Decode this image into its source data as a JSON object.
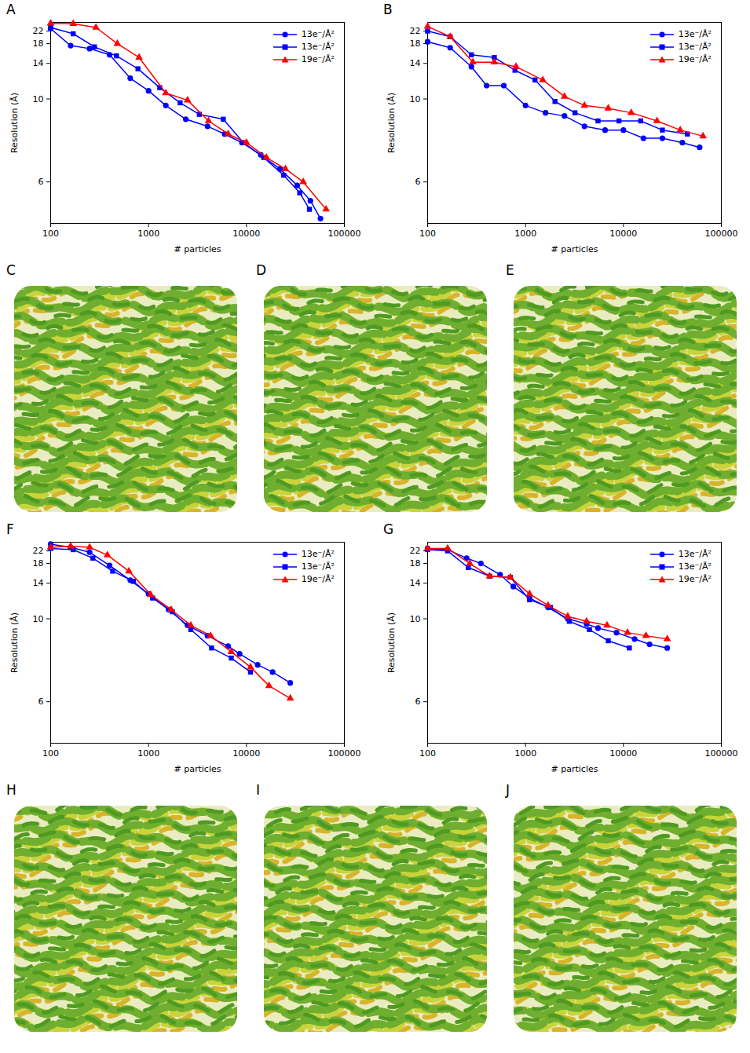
{
  "chart_data": [
    {
      "panel": "A",
      "type": "line",
      "x_label": "# particles",
      "y_label": "Resolution (Å)",
      "log": "x",
      "xlim": [
        100,
        100000
      ],
      "ylim": [
        5,
        26
      ],
      "xticks": [
        100,
        1000,
        10000,
        100000
      ],
      "yticks": [
        6,
        10,
        14,
        18,
        22
      ],
      "grid": false,
      "legend": "upper right",
      "series": [
        {
          "name": "13e⁻/Å²",
          "color": "#0000ff",
          "marker": "circle",
          "x": [
            100,
            160,
            250,
            400,
            650,
            1000,
            1500,
            2400,
            4000,
            6000,
            9000,
            14000,
            22000,
            33000,
            45000,
            57000
          ],
          "values": [
            23,
            17.5,
            16.8,
            15.5,
            12,
            10.7,
            9.5,
            8.6,
            8.2,
            7.8,
            7.4,
            6.9,
            6.4,
            5.9,
            5.5,
            5.1
          ]
        },
        {
          "name": "13e⁻/Å²",
          "color": "#0000ff",
          "marker": "square",
          "x": [
            100,
            170,
            280,
            470,
            780,
            1300,
            2100,
            3300,
            5800,
            9300,
            15000,
            24000,
            35000,
            44000
          ],
          "values": [
            23.5,
            21,
            17.2,
            15.3,
            13.2,
            11,
            9.7,
            8.9,
            8.6,
            7.4,
            6.8,
            6.2,
            5.7,
            5.3
          ]
        },
        {
          "name": "19e⁻/Å²",
          "color": "#ff0000",
          "marker": "triangle",
          "x": [
            100,
            170,
            290,
            480,
            800,
            1500,
            2500,
            4100,
            6500,
            10000,
            16000,
            25000,
            38000,
            65000
          ],
          "values": [
            25.5,
            25.3,
            23.5,
            18,
            15,
            10.5,
            9.9,
            8.5,
            7.8,
            7.4,
            6.8,
            6.4,
            6,
            5.3
          ]
        }
      ]
    },
    {
      "panel": "B",
      "type": "line",
      "x_label": "# particles",
      "y_label": "Resolution (Å)",
      "log": "x",
      "xlim": [
        100,
        100000
      ],
      "ylim": [
        5,
        26
      ],
      "xticks": [
        100,
        1000,
        10000,
        100000
      ],
      "yticks": [
        6,
        10,
        14,
        18,
        22
      ],
      "grid": false,
      "legend": "upper right",
      "series": [
        {
          "name": "13e⁻/Å²",
          "color": "#0000ff",
          "marker": "circle",
          "x": [
            100,
            170,
            280,
            400,
            600,
            1000,
            1600,
            2500,
            4000,
            6500,
            10000,
            16000,
            25000,
            40000,
            60000
          ],
          "values": [
            18.5,
            17,
            13.5,
            11.2,
            11.2,
            9.5,
            9,
            8.8,
            8.2,
            8,
            8,
            7.6,
            7.6,
            7.4,
            7.2
          ]
        },
        {
          "name": "13e⁻/Å²",
          "color": "#0000ff",
          "marker": "square",
          "x": [
            100,
            170,
            280,
            480,
            780,
            1250,
            2000,
            3200,
            5500,
            9000,
            15000,
            25000,
            45000
          ],
          "values": [
            22,
            20,
            15.5,
            15,
            13,
            11.8,
            9.8,
            9,
            8.5,
            8.5,
            8.5,
            8,
            7.8
          ]
        },
        {
          "name": "19e⁻/Å²",
          "color": "#ff0000",
          "marker": "triangle",
          "x": [
            100,
            170,
            290,
            480,
            800,
            1500,
            2500,
            4000,
            7000,
            12000,
            22000,
            38000,
            65000
          ],
          "values": [
            24,
            20,
            14.2,
            14.2,
            13.5,
            11.8,
            10.2,
            9.5,
            9.3,
            9,
            8.5,
            8,
            7.7
          ]
        }
      ]
    },
    {
      "panel": "F",
      "type": "line",
      "x_label": "# particles",
      "y_label": "Resolution (Å)",
      "log": "x",
      "xlim": [
        100,
        100000
      ],
      "ylim": [
        5,
        26
      ],
      "xticks": [
        100,
        1000,
        10000,
        100000
      ],
      "yticks": [
        6,
        10,
        14,
        18,
        22
      ],
      "grid": false,
      "legend": "upper right",
      "series": [
        {
          "name": "13e⁻/Å²",
          "color": "#0000ff",
          "marker": "circle",
          "x": [
            100,
            160,
            250,
            400,
            650,
            1000,
            1600,
            2500,
            4000,
            6500,
            8500,
            13000,
            18500,
            28000
          ],
          "values": [
            25,
            23.5,
            21.5,
            17.5,
            14.5,
            12.5,
            10.8,
            9.5,
            8.8,
            8.2,
            7.8,
            7.3,
            7,
            6.6
          ]
        },
        {
          "name": "13e⁻/Å²",
          "color": "#0000ff",
          "marker": "square",
          "x": [
            100,
            170,
            270,
            430,
            700,
            1100,
            1750,
            2700,
            4400,
            7000,
            11000
          ],
          "values": [
            23,
            22.5,
            19.5,
            16.2,
            14.3,
            12,
            10.6,
            9.2,
            8.1,
            7.6,
            7
          ]
        },
        {
          "name": "19e⁻/Å²",
          "color": "#ff0000",
          "marker": "triangle",
          "x": [
            100,
            160,
            250,
            380,
            630,
            1050,
            1700,
            2700,
            4300,
            7000,
            11000,
            17000,
            28000
          ],
          "values": [
            23.5,
            24,
            23.5,
            20.5,
            16.2,
            12.4,
            10.8,
            9.5,
            8.8,
            7.9,
            7.2,
            6.5,
            6.1
          ]
        }
      ]
    },
    {
      "panel": "G",
      "type": "line",
      "x_label": "# particles",
      "y_label": "Resolution (Å)",
      "log": "x",
      "xlim": [
        100,
        100000
      ],
      "ylim": [
        5,
        26
      ],
      "xticks": [
        100,
        1000,
        10000,
        100000
      ],
      "yticks": [
        6,
        10,
        14,
        18,
        22
      ],
      "grid": false,
      "legend": "upper right",
      "series": [
        {
          "name": "13e⁻/Å²",
          "color": "#0000ff",
          "marker": "circle",
          "x": [
            100,
            160,
            250,
            350,
            550,
            750,
            1100,
            1700,
            2700,
            4200,
            5500,
            8500,
            13000,
            18500,
            28000
          ],
          "values": [
            23,
            22.5,
            19.5,
            18,
            15.5,
            13.5,
            12,
            11,
            10,
            9.6,
            9.3,
            9,
            8.6,
            8.3,
            8.1
          ]
        },
        {
          "name": "13e⁻/Å²",
          "color": "#0000ff",
          "marker": "square",
          "x": [
            100,
            160,
            260,
            430,
            700,
            1100,
            1800,
            2800,
            4500,
            7000,
            11500
          ],
          "values": [
            22.5,
            22,
            17,
            15.2,
            15,
            11.8,
            11,
            9.8,
            9.2,
            8.5,
            8.1
          ]
        },
        {
          "name": "19e⁻/Å²",
          "color": "#ff0000",
          "marker": "triangle",
          "x": [
            100,
            160,
            270,
            430,
            700,
            1100,
            1700,
            2700,
            4200,
            6800,
            11000,
            17000,
            28000
          ],
          "values": [
            23,
            23,
            18,
            15.2,
            15,
            12.5,
            11.2,
            10.2,
            9.8,
            9.5,
            9,
            8.8,
            8.6
          ]
        }
      ]
    }
  ],
  "map_panels": [
    "C",
    "D",
    "E",
    "H",
    "I",
    "J"
  ]
}
